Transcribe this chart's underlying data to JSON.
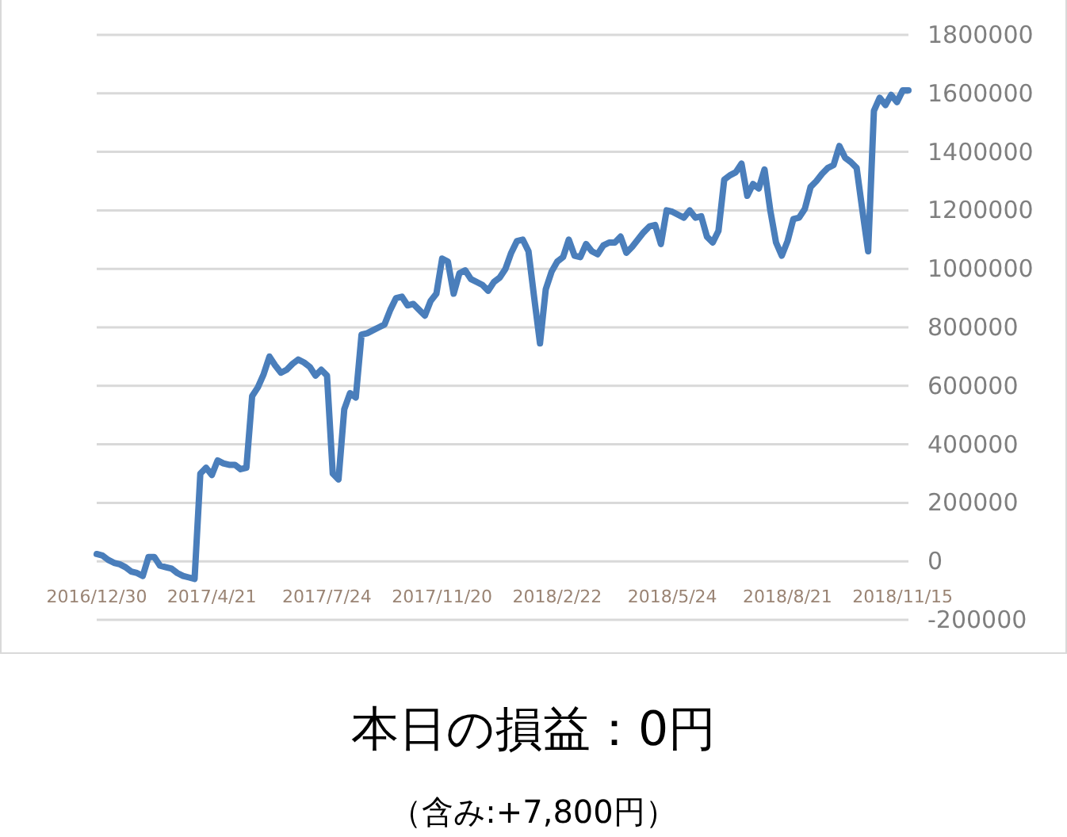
{
  "chart_data": {
    "type": "line",
    "title": "本日の損益：0円",
    "subtitle": "（含み:+7,800円）",
    "categories": [
      "2016/12/30",
      null,
      null,
      null,
      null,
      null,
      null,
      null,
      null,
      null,
      null,
      null,
      null,
      null,
      null,
      null,
      null,
      null,
      null,
      null,
      "2017/4/21",
      null,
      null,
      null,
      null,
      null,
      null,
      null,
      null,
      null,
      null,
      null,
      null,
      null,
      null,
      null,
      null,
      null,
      null,
      null,
      "2017/7/24",
      null,
      null,
      null,
      null,
      null,
      null,
      null,
      null,
      null,
      null,
      null,
      null,
      null,
      null,
      null,
      null,
      null,
      null,
      null,
      "2017/11/20",
      null,
      null,
      null,
      null,
      null,
      null,
      null,
      null,
      null,
      null,
      null,
      null,
      null,
      null,
      null,
      null,
      null,
      null,
      null,
      "2018/2/22",
      null,
      null,
      null,
      null,
      null,
      null,
      null,
      null,
      null,
      null,
      null,
      null,
      null,
      null,
      null,
      null,
      null,
      null,
      null,
      "2018/5/24",
      null,
      null,
      null,
      null,
      null,
      null,
      null,
      null,
      null,
      null,
      null,
      null,
      null,
      null,
      null,
      null,
      null,
      null,
      null,
      "2018/8/21",
      null,
      null,
      null,
      null,
      null,
      null,
      null,
      null,
      null,
      null,
      null,
      null,
      null,
      null,
      null,
      null,
      null,
      null,
      null,
      "2018/11/15",
      null
    ],
    "values": [
      25000,
      20000,
      5000,
      -5000,
      -10000,
      -20000,
      -35000,
      -40000,
      -50000,
      15000,
      15000,
      -15000,
      -20000,
      -25000,
      -40000,
      -50000,
      -55000,
      -60000,
      300000,
      320000,
      295000,
      345000,
      335000,
      330000,
      330000,
      315000,
      320000,
      565000,
      595000,
      640000,
      700000,
      670000,
      645000,
      655000,
      675000,
      690000,
      680000,
      665000,
      635000,
      655000,
      635000,
      300000,
      280000,
      520000,
      575000,
      560000,
      775000,
      780000,
      790000,
      800000,
      810000,
      860000,
      900000,
      905000,
      875000,
      880000,
      860000,
      840000,
      890000,
      915000,
      1035000,
      1025000,
      915000,
      985000,
      995000,
      965000,
      955000,
      945000,
      925000,
      955000,
      970000,
      1000000,
      1055000,
      1095000,
      1100000,
      1060000,
      900000,
      745000,
      930000,
      990000,
      1025000,
      1040000,
      1100000,
      1045000,
      1040000,
      1085000,
      1060000,
      1050000,
      1080000,
      1090000,
      1090000,
      1110000,
      1055000,
      1075000,
      1100000,
      1125000,
      1145000,
      1150000,
      1085000,
      1200000,
      1195000,
      1185000,
      1175000,
      1200000,
      1175000,
      1180000,
      1110000,
      1090000,
      1130000,
      1305000,
      1320000,
      1330000,
      1360000,
      1250000,
      1290000,
      1275000,
      1340000,
      1200000,
      1090000,
      1045000,
      1095000,
      1170000,
      1175000,
      1205000,
      1280000,
      1300000,
      1325000,
      1345000,
      1355000,
      1420000,
      1380000,
      1365000,
      1345000,
      1200000,
      1060000,
      1540000,
      1585000,
      1560000,
      1595000,
      1570000,
      1610000,
      1610000
    ],
    "color": "#4a7ebb",
    "ylim": [
      -200000,
      1800000
    ],
    "yticks": [
      -200000,
      0,
      200000,
      400000,
      600000,
      800000,
      1000000,
      1200000,
      1400000,
      1600000,
      1800000
    ],
    "grid": "y"
  }
}
